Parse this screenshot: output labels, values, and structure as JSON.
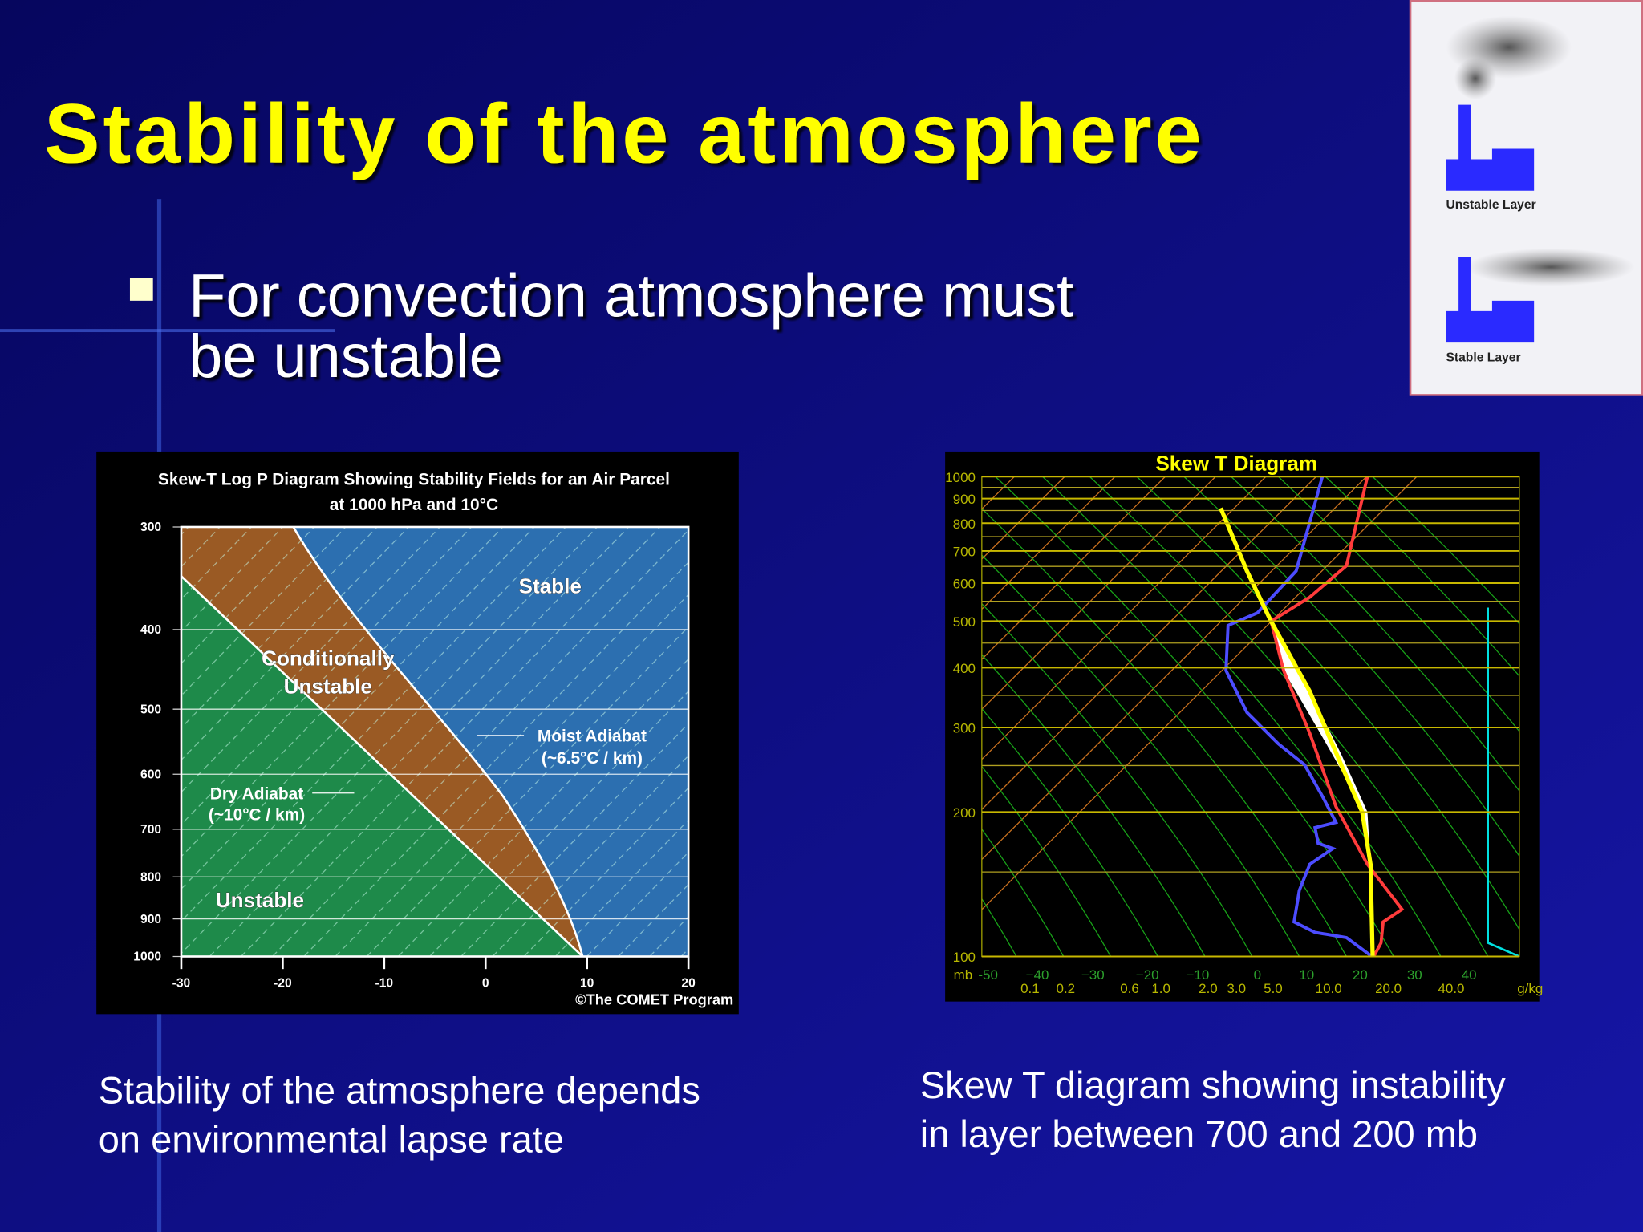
{
  "title": "Stability of the atmosphere",
  "bullet": {
    "lines": [
      "For  convection atmosphere must",
      "be unstable"
    ]
  },
  "inset": {
    "top_label": "Unstable Layer",
    "bottom_label": "Stable Layer"
  },
  "left_figure": {
    "title_lines": [
      "Skew-T Log P Diagram Showing Stability Fields for an Air Parcel",
      "at 1000 hPa and 10°C"
    ],
    "y_ticks": [
      300,
      400,
      500,
      600,
      700,
      800,
      900,
      1000
    ],
    "x_ticks": [
      -30,
      -20,
      -10,
      0,
      10,
      20
    ],
    "labels": {
      "stable": "Stable",
      "conditionally": "Conditionally",
      "conditionally_unstable": "Unstable",
      "moist": "Moist Adiabat",
      "moist_rate": "(~6.5°C / km)",
      "dry": "Dry Adiabat",
      "dry_rate": "(~10°C / km)",
      "unstable": "Unstable",
      "credit": "©The COMET Program"
    },
    "caption": [
      "Stability of the atmosphere depends",
      "on environmental lapse rate"
    ]
  },
  "right_figure": {
    "title": "Skew T Diagram",
    "y_ticks": [
      100,
      200,
      300,
      400,
      500,
      600,
      700,
      800,
      900,
      1000
    ],
    "x_unit": "mb",
    "x_ticks": [
      "-50",
      "−40",
      "−30",
      "−20",
      "−10",
      "0",
      "10",
      "20",
      "30",
      "40"
    ],
    "mixing_ratio_ticks": [
      "0.1",
      "0.2",
      "0.6",
      "1.0",
      "2.0",
      "3.0",
      "5.0",
      "10.0",
      "20.0",
      "40.0"
    ],
    "mixing_unit": "g/kg",
    "caption": [
      "Skew T diagram showing instability",
      "in layer between 700 and 200 mb"
    ]
  }
}
